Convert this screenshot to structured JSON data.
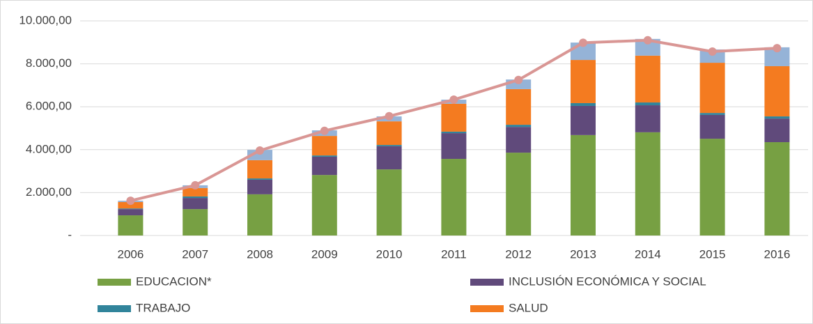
{
  "chart_data": {
    "type": "bar",
    "stacked": true,
    "categories": [
      "2006",
      "2007",
      "2008",
      "2009",
      "2010",
      "2011",
      "2012",
      "2013",
      "2014",
      "2015",
      "2016"
    ],
    "series": [
      {
        "name": "EDUCACION*",
        "color": "#77a043",
        "values": [
          940,
          1230,
          1920,
          2820,
          3080,
          3570,
          3860,
          4680,
          4810,
          4510,
          4350
        ]
      },
      {
        "name": "INCLUSIÓN ECONÓMICA Y SOCIAL",
        "color": "#604a7b",
        "values": [
          290,
          520,
          680,
          850,
          1080,
          1200,
          1200,
          1360,
          1260,
          1110,
          1100
        ]
      },
      {
        "name": "TRABAJO",
        "color": "#31849b",
        "values": [
          30,
          70,
          60,
          60,
          60,
          70,
          100,
          130,
          130,
          90,
          100
        ]
      },
      {
        "name": "SALUD",
        "color": "#f47b20",
        "values": [
          300,
          390,
          850,
          910,
          1100,
          1300,
          1660,
          2010,
          2180,
          2340,
          2340
        ]
      },
      {
        "color": "#95b3d7",
        "values": [
          60,
          130,
          480,
          260,
          230,
          190,
          450,
          810,
          780,
          620,
          880
        ]
      }
    ],
    "line": {
      "color": "#d99694",
      "values": [
        1620,
        2340,
        3960,
        4880,
        5560,
        6330,
        7250,
        8980,
        9100,
        8570,
        8730
      ]
    },
    "ylim": [
      0,
      10000
    ],
    "yticks": [
      {
        "value": 0,
        "label": "-"
      },
      {
        "value": 2000,
        "label": "2.000,00"
      },
      {
        "value": 4000,
        "label": "4.000,00"
      },
      {
        "value": 6000,
        "label": "6.000,00"
      },
      {
        "value": 8000,
        "label": "8.000,00"
      },
      {
        "value": 10000,
        "label": "10.000,00"
      }
    ],
    "grid": true
  }
}
